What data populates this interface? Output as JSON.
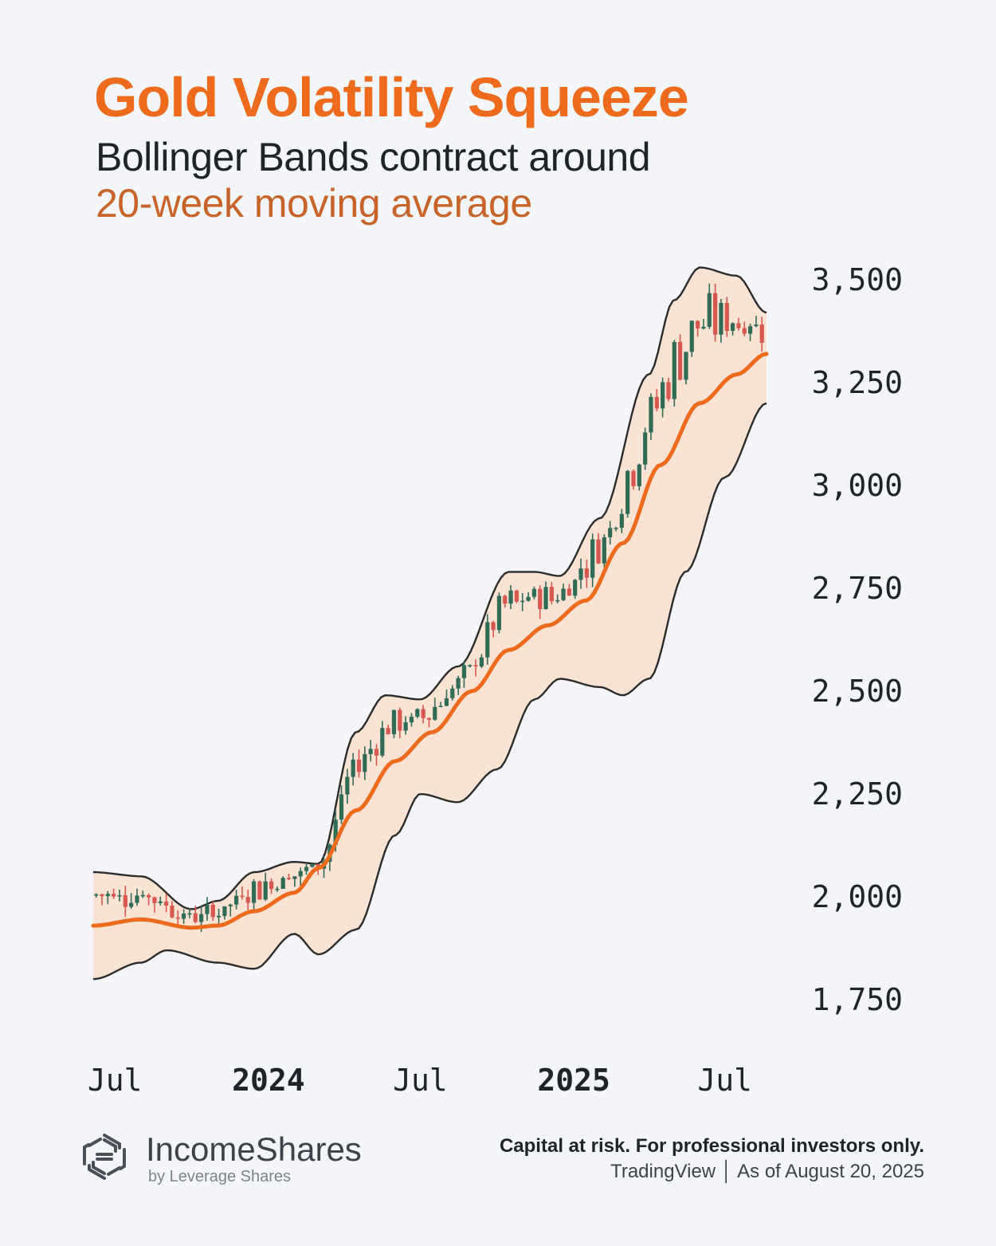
{
  "header": {
    "title": "Gold Volatility Squeeze",
    "subtitle_line1": "Bollinger Bands contract around",
    "subtitle_line2": "20-week moving average"
  },
  "footer": {
    "brand": "IncomeShares",
    "brand_sub": "by Leverage Shares",
    "disclaimer": "Capital at risk. For professional investors only.",
    "source": "TradingView │ As of August 20, 2025",
    "logo_icon": "incomeshares-logo-icon"
  },
  "colors": {
    "title": "#ee6a1c",
    "subtitle_accent": "#c8632a",
    "moving_average": "#ee6a1c",
    "band_fill": "#fbe3d3",
    "band_line": "#2b2b2b",
    "candle_up": "#2f6b55",
    "candle_down": "#d7584f"
  },
  "chart_data": {
    "type": "candlestick",
    "y_axis": {
      "position": "right",
      "ticks": [
        "3,500",
        "3,250",
        "3,000",
        "2,750",
        "2,500",
        "2,250",
        "2,000",
        "1,750"
      ],
      "tick_values": [
        3500,
        3250,
        3000,
        2750,
        2500,
        2250,
        2000,
        1750
      ],
      "ylim": [
        1700,
        3560
      ]
    },
    "x_axis": {
      "ticks": [
        {
          "label": "Jul",
          "date": "2023-07-01",
          "bold": false
        },
        {
          "label": "2024",
          "date": "2024-01-01",
          "bold": true
        },
        {
          "label": "Jul",
          "date": "2024-07-01",
          "bold": false
        },
        {
          "label": "2025",
          "date": "2025-01-01",
          "bold": true
        },
        {
          "label": "Jul",
          "date": "2025-07-01",
          "bold": false
        }
      ],
      "range": [
        "2023-06-05",
        "2025-08-20"
      ]
    },
    "series": [
      {
        "name": "20-week moving average",
        "kind": "line",
        "points": [
          [
            "2023-06-05",
            1930
          ],
          [
            "2023-08-01",
            1945
          ],
          [
            "2023-10-01",
            1925
          ],
          [
            "2023-11-01",
            1930
          ],
          [
            "2023-12-15",
            1965
          ],
          [
            "2024-02-01",
            2010
          ],
          [
            "2024-03-01",
            2070
          ],
          [
            "2024-04-15",
            2210
          ],
          [
            "2024-06-01",
            2330
          ],
          [
            "2024-07-15",
            2400
          ],
          [
            "2024-09-01",
            2500
          ],
          [
            "2024-10-15",
            2600
          ],
          [
            "2024-12-01",
            2660
          ],
          [
            "2025-01-15",
            2720
          ],
          [
            "2025-03-01",
            2860
          ],
          [
            "2025-04-15",
            3050
          ],
          [
            "2025-06-01",
            3200
          ],
          [
            "2025-07-15",
            3270
          ],
          [
            "2025-08-20",
            3320
          ]
        ]
      },
      {
        "name": "Upper Bollinger Band",
        "kind": "band-upper",
        "points": [
          [
            "2023-06-05",
            2060
          ],
          [
            "2023-08-01",
            2050
          ],
          [
            "2023-10-01",
            1970
          ],
          [
            "2023-11-01",
            1990
          ],
          [
            "2023-12-15",
            2060
          ],
          [
            "2024-02-01",
            2085
          ],
          [
            "2024-03-01",
            2080
          ],
          [
            "2024-04-15",
            2400
          ],
          [
            "2024-05-20",
            2490
          ],
          [
            "2024-07-01",
            2480
          ],
          [
            "2024-08-15",
            2560
          ],
          [
            "2024-10-15",
            2790
          ],
          [
            "2024-11-15",
            2790
          ],
          [
            "2024-12-15",
            2780
          ],
          [
            "2025-02-01",
            2920
          ],
          [
            "2025-04-01",
            3270
          ],
          [
            "2025-05-01",
            3450
          ],
          [
            "2025-06-01",
            3530
          ],
          [
            "2025-07-15",
            3510
          ],
          [
            "2025-08-20",
            3420
          ]
        ]
      },
      {
        "name": "Lower Bollinger Band",
        "kind": "band-lower",
        "points": [
          [
            "2023-06-05",
            1800
          ],
          [
            "2023-08-01",
            1840
          ],
          [
            "2023-09-01",
            1870
          ],
          [
            "2023-11-01",
            1840
          ],
          [
            "2023-12-15",
            1825
          ],
          [
            "2024-02-01",
            1910
          ],
          [
            "2024-03-01",
            1860
          ],
          [
            "2024-04-15",
            1920
          ],
          [
            "2024-06-01",
            2150
          ],
          [
            "2024-07-01",
            2250
          ],
          [
            "2024-08-15",
            2230
          ],
          [
            "2024-10-01",
            2310
          ],
          [
            "2024-11-15",
            2480
          ],
          [
            "2024-12-15",
            2530
          ],
          [
            "2025-02-01",
            2510
          ],
          [
            "2025-03-01",
            2490
          ],
          [
            "2025-04-01",
            2530
          ],
          [
            "2025-05-15",
            2790
          ],
          [
            "2025-07-01",
            3020
          ],
          [
            "2025-08-20",
            3200
          ]
        ]
      },
      {
        "name": "Price",
        "kind": "candles",
        "pattern": "weekly-candles-tracking-moving-average"
      }
    ]
  }
}
